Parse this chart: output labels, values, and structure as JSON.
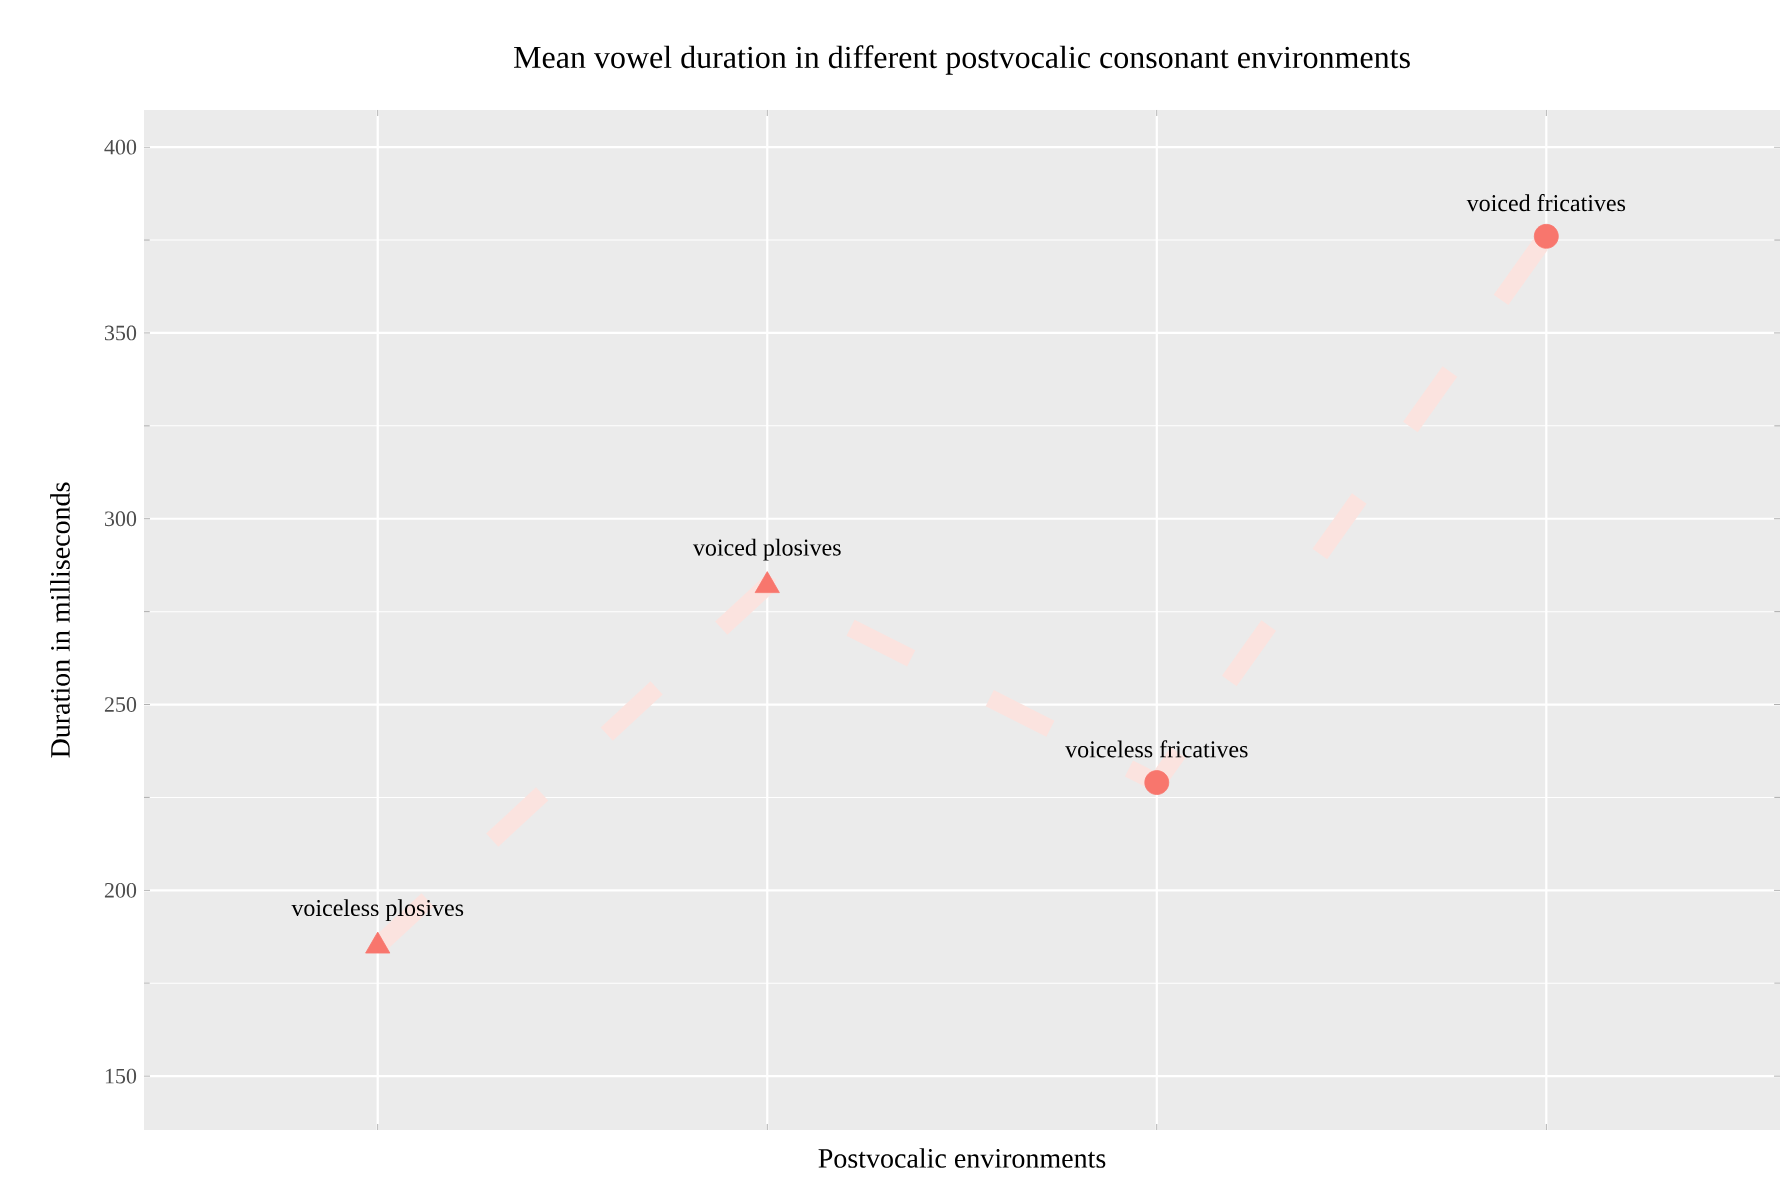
{
  "chart_data": {
    "type": "scatter",
    "title": "Mean vowel duration in different postvocalic consonant environments",
    "xlabel": "Postvocalic environments",
    "ylabel": "Duration in milliseconds",
    "categories": [
      null,
      null,
      null,
      null
    ],
    "series": [
      {
        "type": "line",
        "color": "#fbe3df",
        "line_style": "dashed",
        "marker": "none",
        "values": [
          185,
          282,
          229,
          376
        ],
        "value_labels": [
          "voiceless plosives",
          "voiced plosives",
          "voiceless fricatives",
          "voiced fricatives"
        ]
      },
      {
        "color": "#f8766d",
        "marker": "triangle",
        "values": [
          185,
          282,
          null,
          null
        ]
      },
      {
        "color": "#f8766d",
        "marker": "circle",
        "values": [
          null,
          null,
          229,
          376
        ]
      }
    ],
    "ylim": [
      135.5,
      410
    ],
    "yticks": [
      150,
      200,
      250,
      300,
      350,
      400
    ],
    "grid": true,
    "tick_labels": "y"
  }
}
